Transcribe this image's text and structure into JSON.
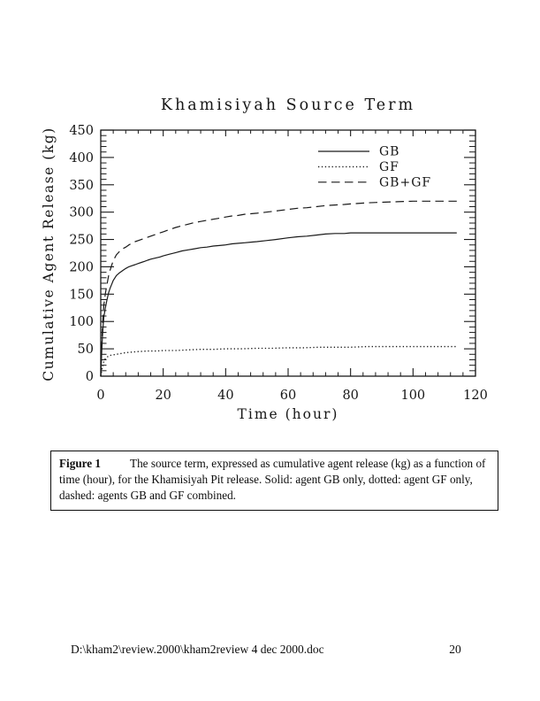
{
  "page": {
    "background": "#ffffff"
  },
  "chart_data": {
    "type": "line",
    "title": "Khamisiyah Source Term",
    "xlabel": "Time (hour)",
    "ylabel": "Cumulative Agent Release (kg)",
    "xlim": [
      0,
      120
    ],
    "ylim": [
      0,
      450
    ],
    "xticks": [
      0,
      20,
      40,
      60,
      80,
      100,
      120
    ],
    "yticks": [
      0,
      50,
      100,
      150,
      200,
      250,
      300,
      350,
      400,
      450
    ],
    "x_minor_step": 4,
    "y_minor_step": 10,
    "grid": false,
    "legend_position": "upper-right-inside",
    "axis_color": "#1a1a1a",
    "line_color": "#1a1a1a",
    "series": [
      {
        "name": "GB",
        "style": "solid",
        "points": [
          [
            0,
            0
          ],
          [
            0.3,
            45
          ],
          [
            0.5,
            70
          ],
          [
            0.8,
            95
          ],
          [
            1,
            108
          ],
          [
            1.5,
            126
          ],
          [
            2,
            140
          ],
          [
            2.5,
            152
          ],
          [
            3,
            161
          ],
          [
            3.5,
            168
          ],
          [
            4,
            175
          ],
          [
            5,
            184
          ],
          [
            6,
            189
          ],
          [
            7,
            193
          ],
          [
            8,
            197
          ],
          [
            9,
            200
          ],
          [
            10,
            202
          ],
          [
            11,
            204
          ],
          [
            12,
            206
          ],
          [
            13,
            208
          ],
          [
            14,
            210
          ],
          [
            15,
            212
          ],
          [
            16,
            214
          ],
          [
            17.5,
            216
          ],
          [
            19,
            218
          ],
          [
            20,
            220
          ],
          [
            22,
            223
          ],
          [
            24,
            226
          ],
          [
            26,
            229
          ],
          [
            28,
            231
          ],
          [
            30,
            233
          ],
          [
            32,
            235
          ],
          [
            34,
            236
          ],
          [
            36,
            238
          ],
          [
            38,
            239
          ],
          [
            40,
            240
          ],
          [
            42,
            242
          ],
          [
            44,
            243
          ],
          [
            46,
            244
          ],
          [
            48,
            245
          ],
          [
            50,
            246
          ],
          [
            53,
            248
          ],
          [
            56,
            250
          ],
          [
            60,
            253
          ],
          [
            63,
            255
          ],
          [
            66,
            256
          ],
          [
            69,
            258
          ],
          [
            72,
            260
          ],
          [
            75,
            261
          ],
          [
            78,
            261
          ],
          [
            80,
            262
          ],
          [
            85,
            262
          ],
          [
            90,
            262
          ],
          [
            95,
            262
          ],
          [
            100,
            262
          ],
          [
            105,
            262
          ],
          [
            110,
            262
          ],
          [
            114,
            262
          ]
        ]
      },
      {
        "name": "GF",
        "style": "dotted",
        "points": [
          [
            0,
            0
          ],
          [
            0.3,
            10
          ],
          [
            0.5,
            16
          ],
          [
            0.8,
            22
          ],
          [
            1,
            27
          ],
          [
            1.5,
            32
          ],
          [
            2,
            35
          ],
          [
            3,
            38
          ],
          [
            4,
            39
          ],
          [
            5,
            40
          ],
          [
            6,
            41
          ],
          [
            7,
            42
          ],
          [
            8,
            43
          ],
          [
            10,
            44
          ],
          [
            12,
            45
          ],
          [
            15,
            46
          ],
          [
            18,
            46
          ],
          [
            20,
            47
          ],
          [
            24,
            47
          ],
          [
            28,
            48
          ],
          [
            32,
            49
          ],
          [
            36,
            49
          ],
          [
            40,
            50
          ],
          [
            45,
            50
          ],
          [
            50,
            51
          ],
          [
            55,
            51
          ],
          [
            60,
            52
          ],
          [
            65,
            52
          ],
          [
            70,
            53
          ],
          [
            75,
            53
          ],
          [
            80,
            53
          ],
          [
            85,
            54
          ],
          [
            90,
            54
          ],
          [
            95,
            54
          ],
          [
            100,
            54
          ],
          [
            105,
            54
          ],
          [
            110,
            54
          ],
          [
            114,
            54
          ]
        ]
      },
      {
        "name": "GB+GF",
        "style": "dashed",
        "points": [
          [
            0,
            0
          ],
          [
            0.3,
            55
          ],
          [
            0.5,
            85
          ],
          [
            0.8,
            115
          ],
          [
            1,
            130
          ],
          [
            1.5,
            152
          ],
          [
            2,
            168
          ],
          [
            2.5,
            183
          ],
          [
            3,
            194
          ],
          [
            3.5,
            203
          ],
          [
            4,
            211
          ],
          [
            5,
            222
          ],
          [
            6,
            228
          ],
          [
            7,
            233
          ],
          [
            8,
            236
          ],
          [
            9,
            240
          ],
          [
            10,
            243
          ],
          [
            11,
            246
          ],
          [
            12,
            248
          ],
          [
            13,
            250
          ],
          [
            14,
            252
          ],
          [
            15,
            254
          ],
          [
            16,
            256
          ],
          [
            17.5,
            259
          ],
          [
            19,
            262
          ],
          [
            20,
            264
          ],
          [
            22,
            268
          ],
          [
            24,
            272
          ],
          [
            26,
            275
          ],
          [
            28,
            278
          ],
          [
            30,
            281
          ],
          [
            32,
            283
          ],
          [
            34,
            285
          ],
          [
            36,
            287
          ],
          [
            38,
            289
          ],
          [
            40,
            291
          ],
          [
            42,
            293
          ],
          [
            44,
            294
          ],
          [
            46,
            296
          ],
          [
            48,
            297
          ],
          [
            50,
            298
          ],
          [
            53,
            300
          ],
          [
            56,
            302
          ],
          [
            60,
            305
          ],
          [
            63,
            307
          ],
          [
            66,
            308
          ],
          [
            69,
            310
          ],
          [
            72,
            312
          ],
          [
            75,
            313
          ],
          [
            78,
            314
          ],
          [
            80,
            315
          ],
          [
            85,
            317
          ],
          [
            90,
            318
          ],
          [
            95,
            319
          ],
          [
            100,
            320
          ],
          [
            105,
            320
          ],
          [
            110,
            320
          ],
          [
            114,
            320
          ]
        ]
      }
    ]
  },
  "caption": {
    "label": "Figure 1",
    "text": "The source term, expressed as cumulative agent release (kg) as a function of time (hour), for the Khamisiyah Pit release.  Solid: agent GB only, dotted: agent GF only, dashed: agents GB and GF combined."
  },
  "footer": {
    "path": "D:\\kham2\\review.2000\\kham2review 4 dec 2000.doc",
    "page_number": "20"
  }
}
